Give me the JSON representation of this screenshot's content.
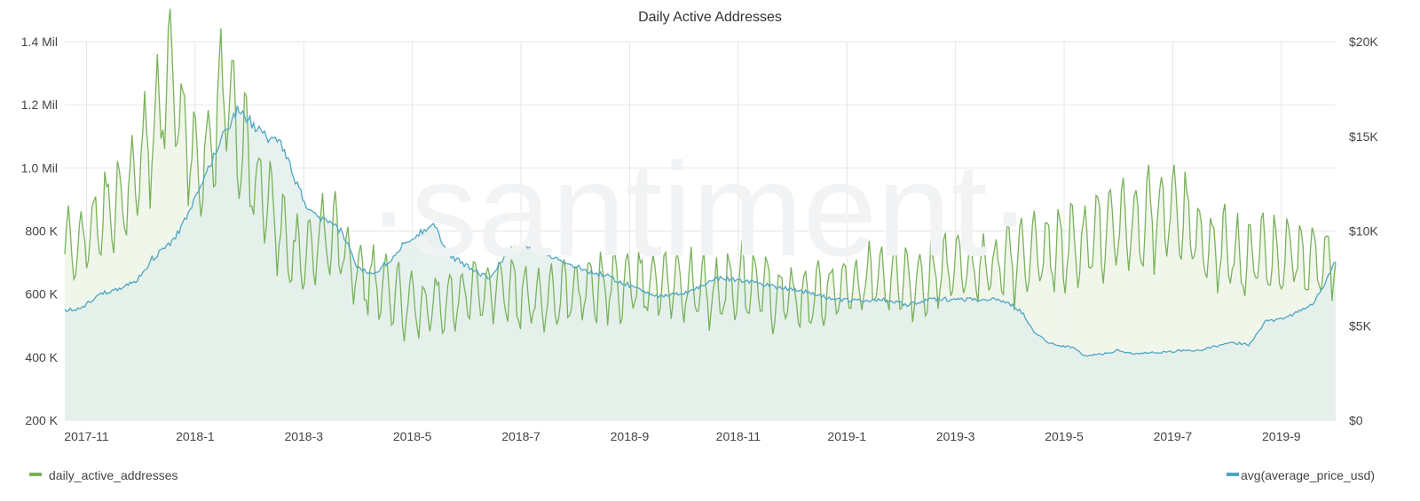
{
  "chart_data": {
    "type": "line",
    "title": "Daily Active Addresses",
    "watermark": "·santiment·",
    "x_ticks": [
      "2017-11",
      "2018-1",
      "2018-3",
      "2018-5",
      "2018-7",
      "2018-9",
      "2018-11",
      "2019-1",
      "2019-3",
      "2019-5",
      "2019-7",
      "2019-9"
    ],
    "left_axis": {
      "ticks": [
        "1.4 Mil",
        "1.2 Mil",
        "1.0 Mil",
        "800 K",
        "600 K",
        "400 K",
        "200 K"
      ],
      "values": [
        1400000,
        1200000,
        1000000,
        800000,
        600000,
        400000,
        200000
      ],
      "ylim": [
        200000,
        1400000
      ]
    },
    "right_axis": {
      "ticks": [
        "$20K",
        "$15K",
        "$10K",
        "$5K",
        "$0"
      ],
      "values": [
        20000,
        15000,
        10000,
        5000,
        0
      ],
      "ylim": [
        0,
        20000
      ]
    },
    "x_range": {
      "start_month_index": 0,
      "note": "month index relative to 2017-11, range 0 to ~23.4"
    },
    "series": [
      {
        "name": "daily_active_addresses",
        "axis": "left",
        "color": "#79b25a",
        "fill": "#eef5e8",
        "anchors": [
          [
            0,
            720000
          ],
          [
            0.5,
            800000
          ],
          [
            1,
            900000
          ],
          [
            1.3,
            960000
          ],
          [
            1.6,
            1100000
          ],
          [
            1.8,
            1250000
          ],
          [
            2,
            1280000
          ],
          [
            2.2,
            1100000
          ],
          [
            2.4,
            1050000
          ],
          [
            2.6,
            1000000
          ],
          [
            2.8,
            1180000
          ],
          [
            3,
            1250000
          ],
          [
            3.2,
            1100000
          ],
          [
            3.5,
            950000
          ],
          [
            3.7,
            900000
          ],
          [
            4,
            800000
          ],
          [
            4.3,
            700000
          ],
          [
            4.7,
            780000
          ],
          [
            5,
            780000
          ],
          [
            5.3,
            700000
          ],
          [
            5.6,
            650000
          ],
          [
            5.9,
            620000
          ],
          [
            6.3,
            560000
          ],
          [
            6.7,
            560000
          ],
          [
            7.2,
            600000
          ],
          [
            8,
            630000
          ],
          [
            8.5,
            580000
          ],
          [
            9,
            600000
          ],
          [
            9.5,
            600000
          ],
          [
            10,
            630000
          ],
          [
            10.5,
            620000
          ],
          [
            11,
            650000
          ],
          [
            11.5,
            620000
          ],
          [
            12,
            600000
          ],
          [
            12.5,
            640000
          ],
          [
            13,
            600000
          ],
          [
            13.5,
            580000
          ],
          [
            14,
            600000
          ],
          [
            14.5,
            620000
          ],
          [
            15,
            650000
          ],
          [
            15.5,
            640000
          ],
          [
            16,
            660000
          ],
          [
            16.5,
            680000
          ],
          [
            17,
            690000
          ],
          [
            17.5,
            700000
          ],
          [
            18,
            720000
          ],
          [
            18.5,
            750000
          ],
          [
            19,
            780000
          ],
          [
            19.5,
            820000
          ],
          [
            20,
            840000
          ],
          [
            20.5,
            860000
          ],
          [
            20.8,
            800000
          ],
          [
            21,
            750000
          ],
          [
            21.5,
            730000
          ],
          [
            22,
            720000
          ],
          [
            22.5,
            720000
          ],
          [
            23,
            700000
          ],
          [
            23.4,
            700000
          ]
        ]
      },
      {
        "name": "avg(average_price_usd)",
        "axis": "right",
        "color": "#4ea6c4",
        "fill": "#e3efeb",
        "anchors": [
          [
            0,
            5800
          ],
          [
            0.3,
            5900
          ],
          [
            0.6,
            6600
          ],
          [
            1,
            7000
          ],
          [
            1.3,
            7300
          ],
          [
            1.6,
            8500
          ],
          [
            2,
            9500
          ],
          [
            2.3,
            11000
          ],
          [
            2.6,
            13000
          ],
          [
            2.9,
            15000
          ],
          [
            3.2,
            16500
          ],
          [
            3.5,
            15500
          ],
          [
            3.7,
            15000
          ],
          [
            4,
            14500
          ],
          [
            4.2,
            13000
          ],
          [
            4.5,
            11000
          ],
          [
            4.8,
            10500
          ],
          [
            5.1,
            10000
          ],
          [
            5.4,
            8000
          ],
          [
            5.7,
            7800
          ],
          [
            6,
            8500
          ],
          [
            6.3,
            9500
          ],
          [
            6.6,
            10000
          ],
          [
            6.8,
            10500
          ],
          [
            7,
            9000
          ],
          [
            7.2,
            8500
          ],
          [
            7.5,
            8000
          ],
          [
            7.8,
            7500
          ],
          [
            8.2,
            9000
          ],
          [
            8.6,
            9200
          ],
          [
            8.8,
            9000
          ],
          [
            9,
            8600
          ],
          [
            9.5,
            8000
          ],
          [
            10,
            7600
          ],
          [
            10.5,
            7000
          ],
          [
            11,
            6500
          ],
          [
            11.5,
            6800
          ],
          [
            12,
            7500
          ],
          [
            12.5,
            7400
          ],
          [
            13,
            7100
          ],
          [
            13.5,
            6900
          ],
          [
            14,
            6500
          ],
          [
            14.5,
            6300
          ],
          [
            15,
            6400
          ],
          [
            15.5,
            6100
          ],
          [
            16,
            6400
          ],
          [
            16.5,
            6400
          ],
          [
            17,
            6400
          ],
          [
            17.3,
            6300
          ],
          [
            17.6,
            5800
          ],
          [
            17.9,
            4500
          ],
          [
            18.2,
            4000
          ],
          [
            18.5,
            3900
          ],
          [
            18.8,
            3400
          ],
          [
            19.1,
            3500
          ],
          [
            19.4,
            3700
          ],
          [
            19.7,
            3500
          ],
          [
            20,
            3600
          ],
          [
            20.3,
            3600
          ],
          [
            20.6,
            3700
          ],
          [
            20.9,
            3700
          ],
          [
            21.2,
            3900
          ],
          [
            21.5,
            4100
          ],
          [
            21.8,
            4000
          ],
          [
            22.1,
            5200
          ],
          [
            22.4,
            5400
          ],
          [
            22.7,
            5700
          ],
          [
            23,
            6200
          ],
          [
            23.2,
            7200
          ],
          [
            23.4,
            8500
          ]
        ]
      }
    ],
    "legend": [
      {
        "label": "daily_active_addresses",
        "color": "#79b25a",
        "position": "bottom-left"
      },
      {
        "label": "avg(average_price_usd)",
        "color": "#4ea6c4",
        "position": "bottom-right"
      }
    ]
  }
}
